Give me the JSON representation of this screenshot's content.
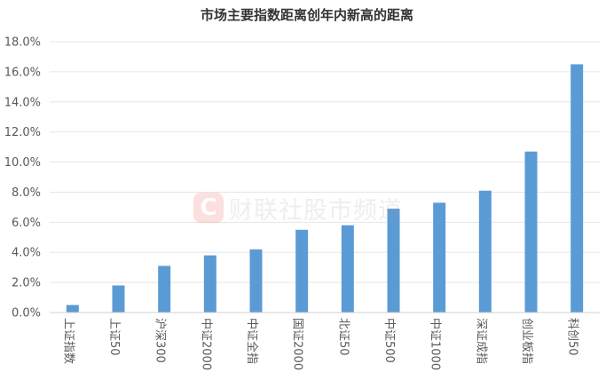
{
  "chart_data": {
    "type": "bar",
    "title": "市场主要指数距离创年内新高的距离",
    "categories": [
      "上证指数",
      "上证50",
      "沪深300",
      "中证2000",
      "中证全指",
      "国证2000",
      "北证50",
      "中证500",
      "中证1000",
      "深证成指",
      "创业板指",
      "科创50"
    ],
    "values": [
      0.5,
      1.8,
      3.1,
      3.8,
      4.2,
      5.5,
      5.8,
      6.9,
      7.3,
      8.1,
      10.7,
      16.5
    ],
    "ylim": [
      0,
      18
    ],
    "yticks": [
      "0.0%",
      "2.0%",
      "4.0%",
      "6.0%",
      "8.0%",
      "10.0%",
      "12.0%",
      "14.0%",
      "16.0%",
      "18.0%"
    ],
    "grid": true,
    "bar_color": "#5b9bd5",
    "xlabel": "",
    "ylabel": ""
  },
  "watermark": {
    "logo": "C",
    "text": "财联社股市频道"
  }
}
